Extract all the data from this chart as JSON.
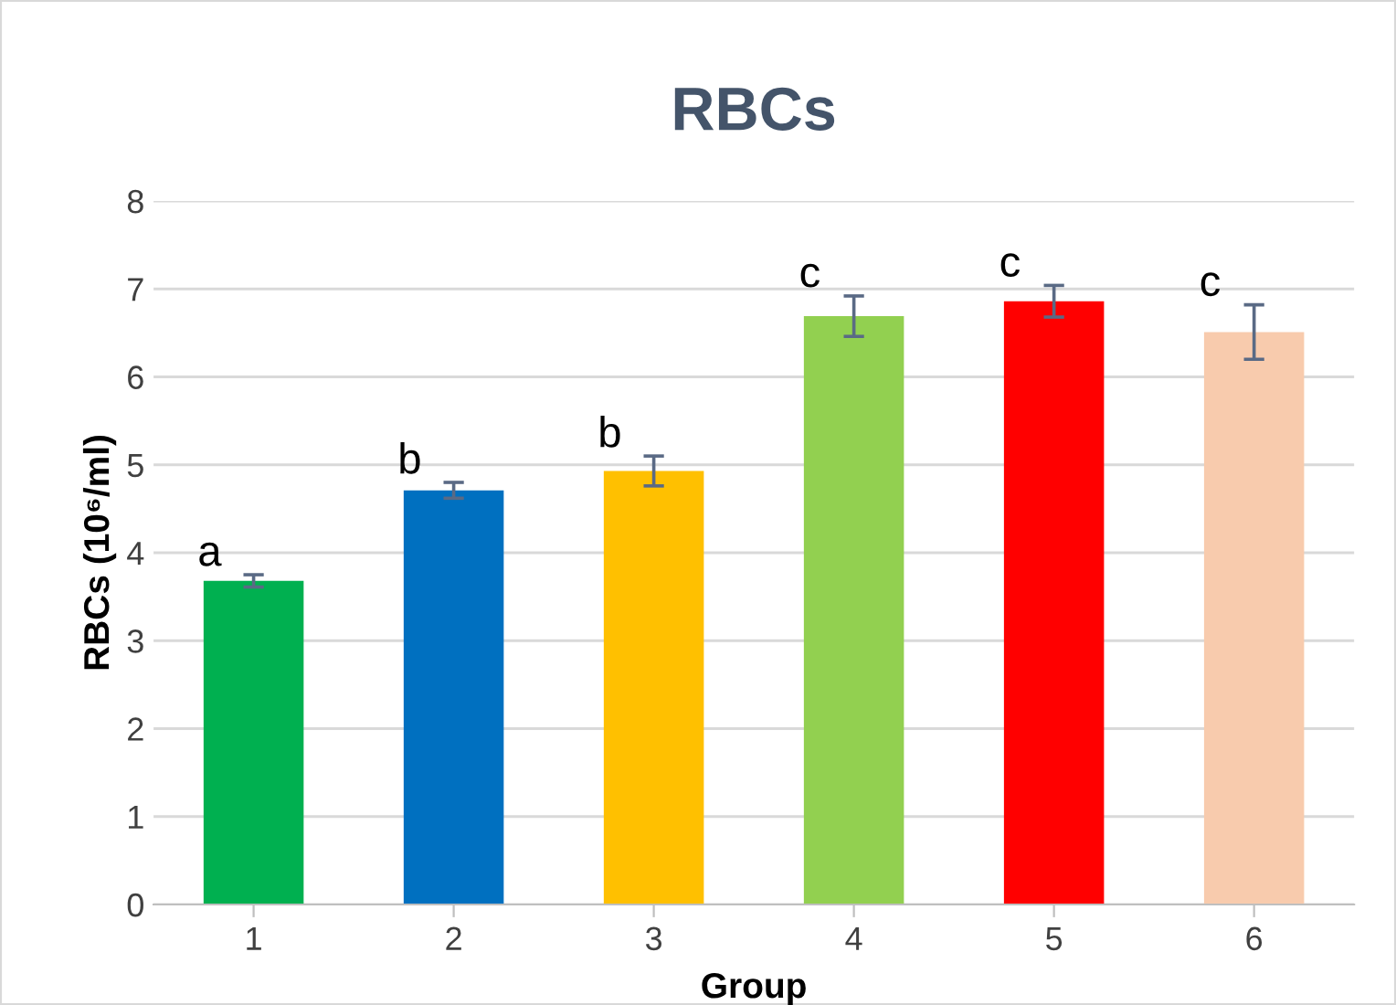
{
  "chart_data": {
    "type": "bar",
    "title": "RBCs",
    "xlabel": "Group",
    "ylabel": "RBCs (10⁶/ml)",
    "categories": [
      "1",
      "2",
      "3",
      "4",
      "5",
      "6"
    ],
    "values": [
      3.68,
      4.71,
      4.93,
      6.69,
      6.86,
      6.51
    ],
    "colors": [
      "#00b050",
      "#0070c0",
      "#ffc000",
      "#92d050",
      "#ff0000",
      "#f8cbad"
    ],
    "errors": [
      0.07,
      0.09,
      0.17,
      0.23,
      0.18,
      0.31
    ],
    "ylim": [
      0,
      8
    ],
    "yticks": [
      0,
      1,
      2,
      3,
      4,
      5,
      6,
      7,
      8
    ],
    "grid": "y",
    "annotations": [
      {
        "text": "a",
        "x": "1",
        "y": 3.75
      },
      {
        "text": "b",
        "x": "2",
        "y": 4.8
      },
      {
        "text": "b",
        "x": "3",
        "y": 5.1
      },
      {
        "text": "c",
        "x": "4",
        "y": 6.92
      },
      {
        "text": "c",
        "x": "5",
        "y": 7.04
      },
      {
        "text": "c",
        "x": "6",
        "y": 6.82
      }
    ]
  }
}
